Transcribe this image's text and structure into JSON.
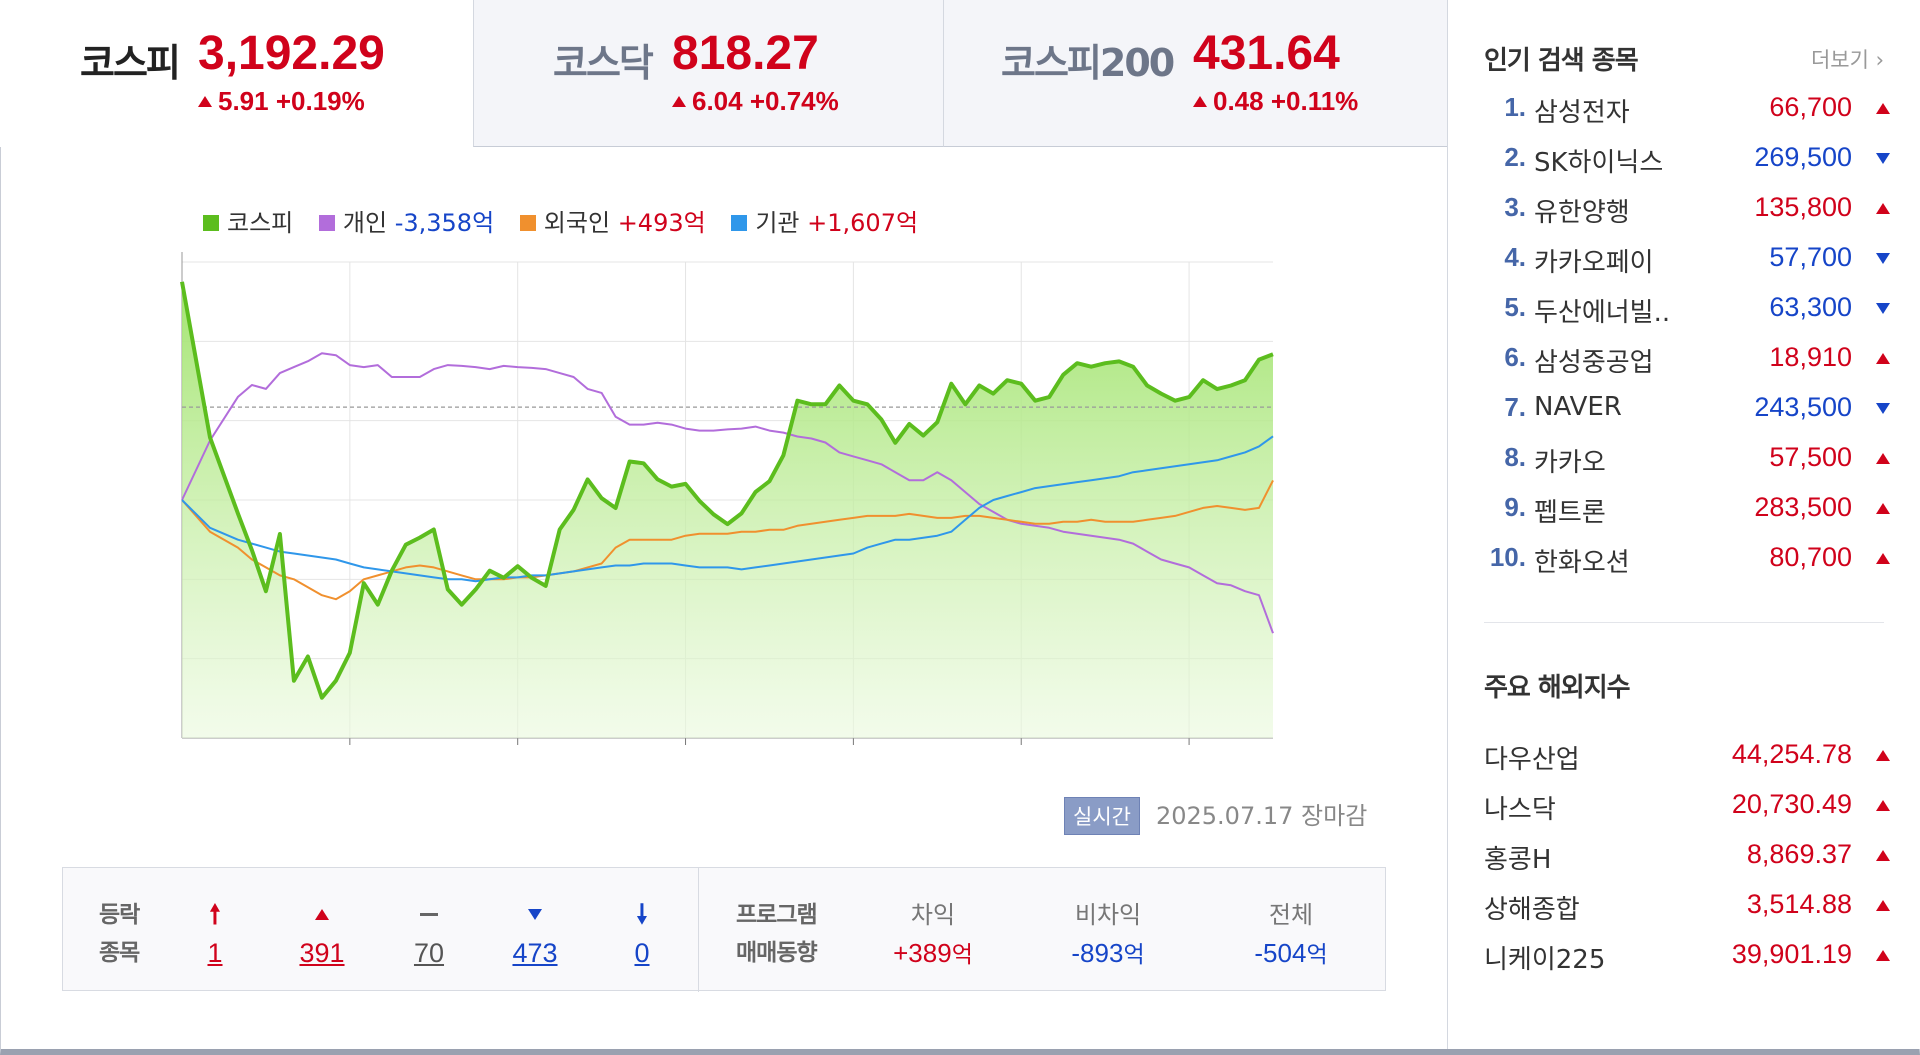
{
  "indices": [
    {
      "name": "코스피",
      "value": "3,192.29",
      "change": "5.91 +0.19%",
      "direction": "up",
      "active": true
    },
    {
      "name": "코스닥",
      "value": "818.27",
      "change": "6.04 +0.74%",
      "direction": "up",
      "active": false
    },
    {
      "name": "코스피200",
      "value": "431.64",
      "change": "0.48 +0.11%",
      "direction": "up",
      "active": false
    }
  ],
  "legend": {
    "kospi": {
      "label": "코스피",
      "color": "#5cbd1e"
    },
    "individual": {
      "label": "개인",
      "value": "-3,358억",
      "color": "#b26ddb"
    },
    "foreign": {
      "label": "외국인",
      "value": "+493억",
      "color": "#f0902e"
    },
    "institution": {
      "label": "기관",
      "value": "+1,607억",
      "color": "#2f97ea"
    }
  },
  "chart_data": {
    "type": "line",
    "x_unit": "time",
    "x_ticks": [
      "10:00",
      "11:00",
      "12:00",
      "13:00",
      "14:00",
      "15:00"
    ],
    "x_range": [
      "09:00",
      "15:30"
    ],
    "y_left_ticks": [
      "6,000",
      "4,000",
      "2,000",
      "0",
      "-2,000",
      "-4,000",
      "-6,000"
    ],
    "y_left_range": [
      -6000,
      6000
    ],
    "y_right_ticks": [
      "3,202.61",
      "3,191.96",
      "3,181.32",
      "3,170.67",
      "3,160.03",
      "3,149.39"
    ],
    "y_right_range": [
      3149.39,
      3202.61
    ],
    "reference_line_kospi": 3186.38,
    "x": [
      "09:00",
      "09:10",
      "09:20",
      "09:25",
      "09:30",
      "09:35",
      "09:40",
      "09:45",
      "09:50",
      "09:55",
      "10:00",
      "10:05",
      "10:10",
      "10:15",
      "10:20",
      "10:25",
      "10:30",
      "10:35",
      "10:40",
      "10:45",
      "10:50",
      "10:55",
      "11:00",
      "11:05",
      "11:10",
      "11:15",
      "11:20",
      "11:25",
      "11:30",
      "11:35",
      "11:40",
      "11:45",
      "11:50",
      "11:55",
      "12:00",
      "12:05",
      "12:10",
      "12:15",
      "12:20",
      "12:25",
      "12:30",
      "12:35",
      "12:40",
      "12:45",
      "12:50",
      "12:55",
      "13:00",
      "13:05",
      "13:10",
      "13:15",
      "13:20",
      "13:25",
      "13:30",
      "13:35",
      "13:40",
      "13:45",
      "13:50",
      "13:55",
      "14:00",
      "14:05",
      "14:10",
      "14:15",
      "14:20",
      "14:25",
      "14:30",
      "14:35",
      "14:40",
      "14:45",
      "14:50",
      "14:55",
      "15:00",
      "15:05",
      "15:10",
      "15:15",
      "15:20",
      "15:25",
      "15:30"
    ],
    "series": [
      {
        "name": "코스피",
        "axis": "right",
        "values": [
          3200.4,
          3183.0,
          3174.5,
          3170.4,
          3165.8,
          3172.2,
          3155.8,
          3158.5,
          3153.9,
          3155.8,
          3158.9,
          3166.7,
          3164.3,
          3168.1,
          3171.0,
          3171.8,
          3172.7,
          3166.0,
          3164.3,
          3166.0,
          3168.1,
          3167.3,
          3168.6,
          3167.3,
          3166.4,
          3172.7,
          3174.9,
          3178.3,
          3176.2,
          3175.1,
          3180.3,
          3180.1,
          3178.3,
          3177.5,
          3177.8,
          3175.9,
          3174.4,
          3173.3,
          3174.5,
          3176.9,
          3178.1,
          3181.0,
          3187.1,
          3186.7,
          3186.7,
          3188.8,
          3187.1,
          3186.7,
          3185.0,
          3182.4,
          3184.5,
          3183.2,
          3184.7,
          3189.0,
          3186.7,
          3188.8,
          3187.9,
          3189.4,
          3189.0,
          3187.1,
          3187.5,
          3190.0,
          3191.3,
          3190.9,
          3191.3,
          3191.5,
          3190.9,
          3188.8,
          3187.9,
          3187.1,
          3187.5,
          3189.4,
          3188.4,
          3188.8,
          3189.4,
          3191.7,
          3192.3
        ]
      },
      {
        "name": "개인",
        "axis": "left",
        "values": [
          0,
          1500,
          2600,
          2900,
          2800,
          3200,
          3350,
          3500,
          3700,
          3650,
          3400,
          3350,
          3400,
          3100,
          3100,
          3100,
          3300,
          3400,
          3380,
          3350,
          3300,
          3380,
          3350,
          3330,
          3300,
          3200,
          3100,
          2800,
          2700,
          2100,
          1900,
          1900,
          1950,
          1900,
          1800,
          1750,
          1750,
          1780,
          1800,
          1850,
          1750,
          1700,
          1600,
          1550,
          1450,
          1200,
          1100,
          1000,
          900,
          700,
          500,
          500,
          700,
          500,
          200,
          -100,
          -300,
          -500,
          -600,
          -650,
          -700,
          -800,
          -850,
          -900,
          -950,
          -1000,
          -1100,
          -1300,
          -1500,
          -1600,
          -1700,
          -1900,
          -2100,
          -2150,
          -2300,
          -2400,
          -3358
        ]
      },
      {
        "name": "외국인",
        "axis": "left",
        "values": [
          0,
          -800,
          -1200,
          -1500,
          -1700,
          -1900,
          -2000,
          -2200,
          -2400,
          -2500,
          -2300,
          -2000,
          -1900,
          -1800,
          -1700,
          -1650,
          -1700,
          -1800,
          -1900,
          -2000,
          -2000,
          -2000,
          -1950,
          -1950,
          -1900,
          -1850,
          -1800,
          -1700,
          -1600,
          -1200,
          -1000,
          -1000,
          -1000,
          -1000,
          -900,
          -850,
          -850,
          -850,
          -800,
          -800,
          -750,
          -750,
          -650,
          -600,
          -550,
          -500,
          -450,
          -400,
          -400,
          -400,
          -350,
          -400,
          -450,
          -450,
          -400,
          -400,
          -450,
          -500,
          -550,
          -600,
          -600,
          -550,
          -550,
          -500,
          -550,
          -550,
          -550,
          -500,
          -450,
          -400,
          -300,
          -200,
          -150,
          -200,
          -250,
          -200,
          493
        ]
      },
      {
        "name": "기관",
        "axis": "left",
        "values": [
          0,
          -700,
          -1000,
          -1100,
          -1200,
          -1300,
          -1350,
          -1400,
          -1450,
          -1500,
          -1600,
          -1700,
          -1750,
          -1800,
          -1850,
          -1900,
          -1950,
          -2000,
          -2000,
          -2050,
          -2000,
          -1950,
          -1950,
          -1900,
          -1900,
          -1850,
          -1800,
          -1750,
          -1700,
          -1650,
          -1650,
          -1600,
          -1600,
          -1600,
          -1650,
          -1700,
          -1700,
          -1700,
          -1750,
          -1700,
          -1650,
          -1600,
          -1550,
          -1500,
          -1450,
          -1400,
          -1350,
          -1200,
          -1100,
          -1000,
          -1000,
          -950,
          -900,
          -800,
          -500,
          -200,
          0,
          100,
          200,
          300,
          350,
          400,
          450,
          500,
          550,
          600,
          700,
          750,
          800,
          850,
          900,
          950,
          1000,
          1100,
          1200,
          1350,
          1607
        ]
      }
    ]
  },
  "asof": {
    "realtime_label": "실시간",
    "date": "2025.07.17",
    "status": "장마감"
  },
  "advance_decline": {
    "label_line1": "등락",
    "label_line2": "종목",
    "upper_limit": "1",
    "up": "391",
    "flat": "70",
    "down": "473",
    "lower_limit": "0"
  },
  "program": {
    "label_line1": "프로그램",
    "label_line2": "매매동향",
    "arbitrage_label": "차익",
    "arbitrage_value": "+389",
    "non_arbitrage_label": "비차익",
    "non_arbitrage_value": "-893",
    "total_label": "전체",
    "total_value": "-504",
    "unit": "억"
  },
  "popular": {
    "title": "인기 검색 종목",
    "more": "더보기",
    "items": [
      {
        "rank": "1.",
        "name": "삼성전자",
        "price": "66,700",
        "dir": "up"
      },
      {
        "rank": "2.",
        "name": "SK하이닉스",
        "price": "269,500",
        "dir": "down"
      },
      {
        "rank": "3.",
        "name": "유한양행",
        "price": "135,800",
        "dir": "up"
      },
      {
        "rank": "4.",
        "name": "카카오페이",
        "price": "57,700",
        "dir": "down"
      },
      {
        "rank": "5.",
        "name": "두산에너빌..",
        "price": "63,300",
        "dir": "down"
      },
      {
        "rank": "6.",
        "name": "삼성중공업",
        "price": "18,910",
        "dir": "up"
      },
      {
        "rank": "7.",
        "name": "NAVER",
        "price": "243,500",
        "dir": "down"
      },
      {
        "rank": "8.",
        "name": "카카오",
        "price": "57,500",
        "dir": "up"
      },
      {
        "rank": "9.",
        "name": "펩트론",
        "price": "283,500",
        "dir": "up"
      },
      {
        "rank": "10.",
        "name": "한화오션",
        "price": "80,700",
        "dir": "up"
      }
    ]
  },
  "global": {
    "title": "주요 해외지수",
    "items": [
      {
        "name": "다우산업",
        "value": "44,254.78",
        "dir": "up"
      },
      {
        "name": "나스닥",
        "value": "20,730.49",
        "dir": "up"
      },
      {
        "name": "홍콩H",
        "value": "8,869.37",
        "dir": "up"
      },
      {
        "name": "상해종합",
        "value": "3,514.88",
        "dir": "up"
      },
      {
        "name": "니케이225",
        "value": "39,901.19",
        "dir": "up"
      }
    ]
  },
  "colors": {
    "up": "#d0021b",
    "down": "#1645c8",
    "rank_number": "#4566a8"
  }
}
